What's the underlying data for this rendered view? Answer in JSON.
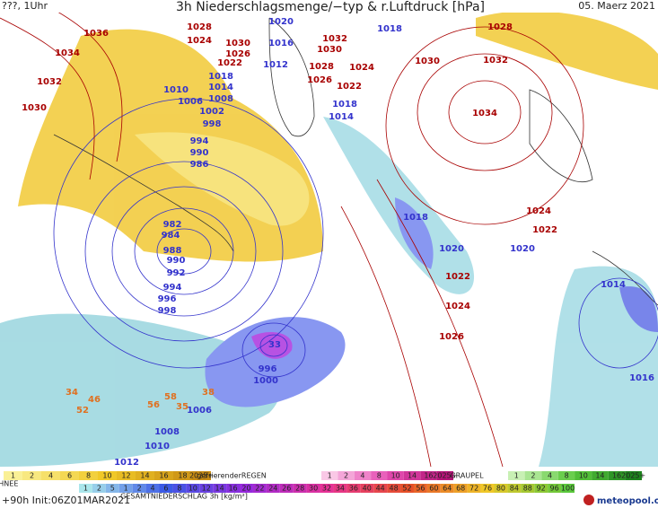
{
  "header": {
    "run": "???, 1Uhr",
    "title": "3h Niederschlagsmenge/−typ & r.Luftdruck [hPa]",
    "date": "05. Maerz 2021"
  },
  "colors": {
    "high": "#a80000",
    "low": "#3333cc",
    "amount": "#e07020"
  },
  "pressure_labels": [
    {
      "text": "1036",
      "kind": "high"
    },
    {
      "text": "1034",
      "kind": "high"
    },
    {
      "text": "1032",
      "kind": "high"
    },
    {
      "text": "1030",
      "kind": "high"
    },
    {
      "text": "1028",
      "kind": "high"
    },
    {
      "text": "1024",
      "kind": "high"
    },
    {
      "text": "1030",
      "kind": "high"
    },
    {
      "text": "1026",
      "kind": "high"
    },
    {
      "text": "1022",
      "kind": "high"
    },
    {
      "text": "1032",
      "kind": "high"
    },
    {
      "text": "1030",
      "kind": "high"
    },
    {
      "text": "1028",
      "kind": "high"
    },
    {
      "text": "1024",
      "kind": "high"
    },
    {
      "text": "1026",
      "kind": "high"
    },
    {
      "text": "1022",
      "kind": "high"
    },
    {
      "text": "1030",
      "kind": "high"
    },
    {
      "text": "1028",
      "kind": "high"
    },
    {
      "text": "1032",
      "kind": "high"
    },
    {
      "text": "1034",
      "kind": "high"
    },
    {
      "text": "1024",
      "kind": "high"
    },
    {
      "text": "1022",
      "kind": "high"
    },
    {
      "text": "1022",
      "kind": "high"
    },
    {
      "text": "1024",
      "kind": "high"
    },
    {
      "text": "1026",
      "kind": "high"
    },
    {
      "text": "1020",
      "kind": "low"
    },
    {
      "text": "1016",
      "kind": "low"
    },
    {
      "text": "1012",
      "kind": "low"
    },
    {
      "text": "1018",
      "kind": "low"
    },
    {
      "text": "1018",
      "kind": "low"
    },
    {
      "text": "1014",
      "kind": "low"
    },
    {
      "text": "1010",
      "kind": "low"
    },
    {
      "text": "1008",
      "kind": "low"
    },
    {
      "text": "1006",
      "kind": "low"
    },
    {
      "text": "1002",
      "kind": "low"
    },
    {
      "text": "998",
      "kind": "low"
    },
    {
      "text": "994",
      "kind": "low"
    },
    {
      "text": "990",
      "kind": "low"
    },
    {
      "text": "986",
      "kind": "low"
    },
    {
      "text": "1018",
      "kind": "low"
    },
    {
      "text": "1014",
      "kind": "low"
    },
    {
      "text": "1018",
      "kind": "low"
    },
    {
      "text": "1020",
      "kind": "low"
    },
    {
      "text": "1020",
      "kind": "low"
    },
    {
      "text": "982",
      "kind": "low"
    },
    {
      "text": "984",
      "kind": "low"
    },
    {
      "text": "988",
      "kind": "low"
    },
    {
      "text": "990",
      "kind": "low"
    },
    {
      "text": "992",
      "kind": "low"
    },
    {
      "text": "994",
      "kind": "low"
    },
    {
      "text": "996",
      "kind": "low"
    },
    {
      "text": "998",
      "kind": "low"
    },
    {
      "text": "1014",
      "kind": "low"
    },
    {
      "text": "1016",
      "kind": "low"
    },
    {
      "text": "33",
      "kind": "low"
    },
    {
      "text": "996",
      "kind": "low"
    },
    {
      "text": "1000",
      "kind": "low"
    },
    {
      "text": "1006",
      "kind": "low"
    },
    {
      "text": "1008",
      "kind": "low"
    },
    {
      "text": "1010",
      "kind": "low"
    },
    {
      "text": "1012",
      "kind": "low"
    },
    {
      "text": "34",
      "kind": "amount"
    },
    {
      "text": "46",
      "kind": "amount"
    },
    {
      "text": "52",
      "kind": "amount"
    },
    {
      "text": "58",
      "kind": "amount"
    },
    {
      "text": "56",
      "kind": "amount"
    },
    {
      "text": "35",
      "kind": "amount"
    },
    {
      "text": "38",
      "kind": "amount"
    }
  ],
  "legend": {
    "snow": {
      "label": "SCHNEE",
      "values": [
        "1",
        "2",
        "4",
        "6",
        "8",
        "10",
        "12",
        "14",
        "16",
        "18",
        "2025+"
      ]
    },
    "freezing_rain": {
      "label": "gefrierenderREGEN",
      "values": [
        "1",
        "2",
        "4",
        "8",
        "10",
        "14",
        "16",
        "2025+"
      ]
    },
    "graupel": {
      "label": "GRAUPEL",
      "values": [
        "1",
        "2",
        "4",
        "8",
        "10",
        "14",
        "16",
        "2025+"
      ]
    },
    "total": {
      "label": "GESAMTNIEDERSCHLAG 3h [kg/m²]",
      "values": [
        "1",
        "2",
        "5",
        "1",
        "2",
        "4",
        "6",
        "8",
        "10",
        "12",
        "14",
        "16",
        "20",
        "22",
        "24",
        "26",
        "28",
        "30",
        "32",
        "34",
        "36",
        "40",
        "44",
        "48",
        "52",
        "56",
        "60",
        "64",
        "68",
        "72",
        "76",
        "80",
        "84",
        "88",
        "92",
        "96",
        "100"
      ]
    }
  },
  "footer": {
    "init": "+90h Init:06Z01MAR2021",
    "brand": "meteopool.org"
  }
}
